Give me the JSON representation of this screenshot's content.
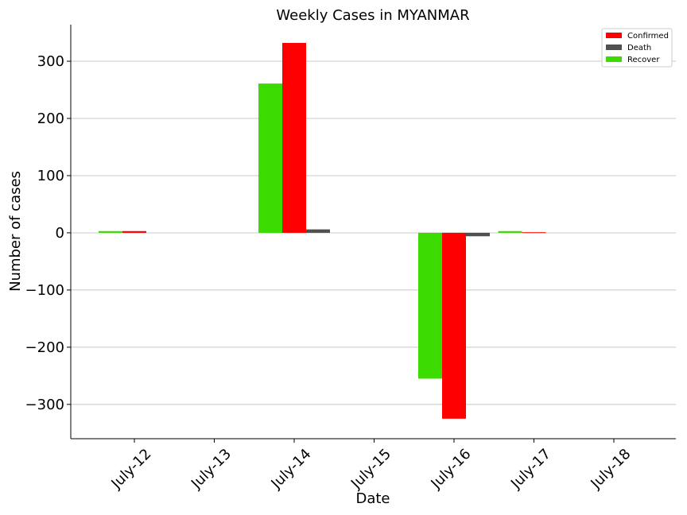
{
  "chart_data": {
    "type": "bar",
    "title": "Weekly Cases in MYANMAR",
    "xlabel": "Date",
    "ylabel": "Number of cases",
    "categories": [
      "July-12",
      "July-13",
      "July-14",
      "July-15",
      "July-16",
      "July-17",
      "July-18"
    ],
    "series": [
      {
        "name": "Recover",
        "color": "#3cdc00",
        "values": [
          3,
          0,
          261,
          0,
          -255,
          3,
          0
        ]
      },
      {
        "name": "Confirmed",
        "color": "#ff0000",
        "values": [
          3,
          0,
          332,
          0,
          -325,
          1,
          0
        ]
      },
      {
        "name": "Death",
        "color": "#505050",
        "values": [
          0,
          0,
          6,
          0,
          -6,
          0,
          0
        ]
      }
    ],
    "legend_order": [
      "Confirmed",
      "Death",
      "Recover"
    ],
    "ylim": [
      -360,
      364
    ],
    "yticks": [
      300,
      200,
      100,
      0,
      -100,
      -200,
      -300
    ],
    "ytick_labels": [
      "300",
      "200",
      "100",
      "0",
      "−100",
      "−200",
      "−300"
    ],
    "grid": "horizontal",
    "legend_position": "top-right"
  }
}
